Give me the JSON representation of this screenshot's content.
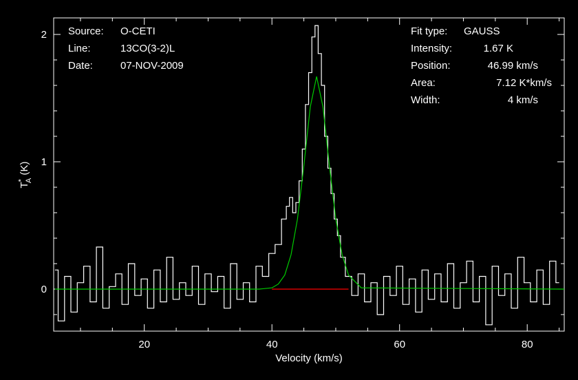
{
  "colors": {
    "background": "#000000",
    "foreground": "#ffffff",
    "fit": "#00cc00",
    "baseline": "#ff0000"
  },
  "header_left": [
    {
      "label": "Source:",
      "value": "O-CETI"
    },
    {
      "label": "Line:",
      "value": "13CO(3-2)L"
    },
    {
      "label": "Date:",
      "value": "07-NOV-2009"
    }
  ],
  "header_right": [
    {
      "label": "Fit type:",
      "value": "GAUSS"
    },
    {
      "label": "Intensity:",
      "value": "1.67 K"
    },
    {
      "label": "Position:",
      "value": "46.99 km/s"
    },
    {
      "label": "Area:",
      "value": "7.12 K*km/s"
    },
    {
      "label": "Width:",
      "value": "4 km/s"
    }
  ],
  "chart_data": {
    "type": "line",
    "title": "",
    "xlabel": "Velocity (km/s)",
    "ylabel": "T*A (K)",
    "ylabel_parts": {
      "main": "T",
      "sup": "*",
      "sub": "A",
      "unit": " (K)"
    },
    "xlim": [
      5.8,
      85.8
    ],
    "ylim": [
      -0.33,
      2.13
    ],
    "x_ticks": [
      20,
      40,
      60,
      80
    ],
    "y_ticks": [
      0,
      1,
      2
    ],
    "grid": false,
    "series": [
      {
        "role": "observed",
        "style": "histogram",
        "x": [
          6,
          7,
          8,
          9,
          10,
          11,
          12,
          13,
          14,
          15,
          16,
          17,
          18,
          19,
          20,
          21,
          22,
          23,
          24,
          25,
          26,
          27,
          28,
          29,
          30,
          31,
          32,
          33,
          34,
          35,
          36,
          37,
          38,
          39,
          40,
          41,
          42,
          42.5,
          43,
          43.5,
          44,
          44.5,
          45,
          45.5,
          46,
          46.5,
          47,
          47.5,
          48,
          48.5,
          49,
          49.5,
          50,
          50.5,
          51,
          52,
          53,
          54,
          55,
          56,
          57,
          58,
          59,
          60,
          61,
          62,
          63,
          64,
          65,
          66,
          67,
          68,
          69,
          70,
          71,
          72,
          73,
          74,
          75,
          76,
          77,
          78,
          79,
          80,
          81,
          82,
          83,
          84,
          85
        ],
        "y": [
          0.15,
          -0.25,
          0.1,
          -0.18,
          0.05,
          0.18,
          -0.1,
          0.33,
          -0.15,
          0.02,
          0.12,
          -0.12,
          0.2,
          -0.05,
          0.08,
          -0.15,
          0.15,
          -0.1,
          0.25,
          -0.08,
          0.05,
          -0.05,
          0.18,
          -0.12,
          0.12,
          -0.02,
          0.1,
          -0.15,
          0.2,
          -0.08,
          0.05,
          -0.1,
          0.18,
          0.1,
          0.28,
          0.35,
          0.55,
          0.65,
          0.72,
          0.6,
          0.68,
          0.85,
          1.1,
          1.45,
          1.7,
          1.98,
          2.07,
          1.85,
          1.6,
          1.2,
          0.95,
          0.75,
          0.55,
          0.42,
          0.25,
          0.1,
          -0.05,
          0.12,
          -0.1,
          0.05,
          -0.2,
          0.1,
          -0.05,
          0.18,
          -0.12,
          0.08,
          -0.18,
          0.15,
          -0.08,
          0.12,
          -0.1,
          0.2,
          -0.15,
          0.05,
          0.22,
          -0.1,
          0.1,
          -0.28,
          0.18,
          -0.05,
          0.12,
          -0.15,
          0.25,
          0.05,
          -0.1,
          0.15,
          -0.12,
          0.22,
          0.05
        ],
        "color": "#ffffff"
      },
      {
        "role": "fit",
        "style": "line",
        "x": [
          6,
          38,
          40,
          41,
          42,
          43,
          44,
          45,
          46,
          47,
          48,
          49,
          50,
          51,
          52,
          54,
          85.8
        ],
        "y": [
          0,
          0,
          0.01,
          0.04,
          0.11,
          0.27,
          0.55,
          0.97,
          1.43,
          1.67,
          1.43,
          0.97,
          0.55,
          0.27,
          0.11,
          0.01,
          0
        ],
        "color": "#00cc00"
      },
      {
        "role": "baseline",
        "style": "line",
        "x": [
          40,
          52
        ],
        "y": [
          0,
          0
        ],
        "color": "#ff0000"
      }
    ]
  }
}
